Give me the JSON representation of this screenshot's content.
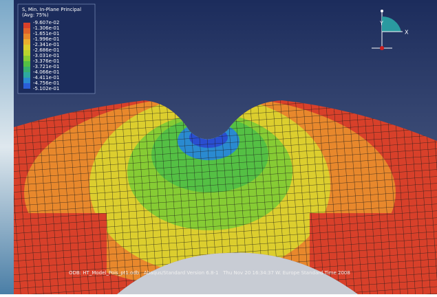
{
  "legend": {
    "title": "S, Min. In-Plane Principal",
    "subtitle": "(Avg: 75%)",
    "values": [
      "-9.607e-02",
      "-1.306e-01",
      "-1.651e-01",
      "-1.996e-01",
      "-2.341e-01",
      "-2.686e-01",
      "-3.031e-01",
      "-3.376e-01",
      "-3.721e-01",
      "-4.066e-01",
      "-4.411e-01",
      "-4.756e-01",
      "-5.102e-01"
    ],
    "colors": [
      "#d8402a",
      "#e0622a",
      "#e8882c",
      "#eaae2e",
      "#dcce2e",
      "#b8d42e",
      "#86cc34",
      "#54c044",
      "#38b070",
      "#2ea8a0",
      "#2a8ad0",
      "#2a5ed8"
    ]
  },
  "triad": {
    "y_label": "Y",
    "x_label": "X"
  },
  "footer": "ODB: HT_Model_Pois_pt1.odb   Abaqus/Standard Version 6.8-1   Thu Nov 20 16:34:37 W. Europe Standard Time 2008"
}
